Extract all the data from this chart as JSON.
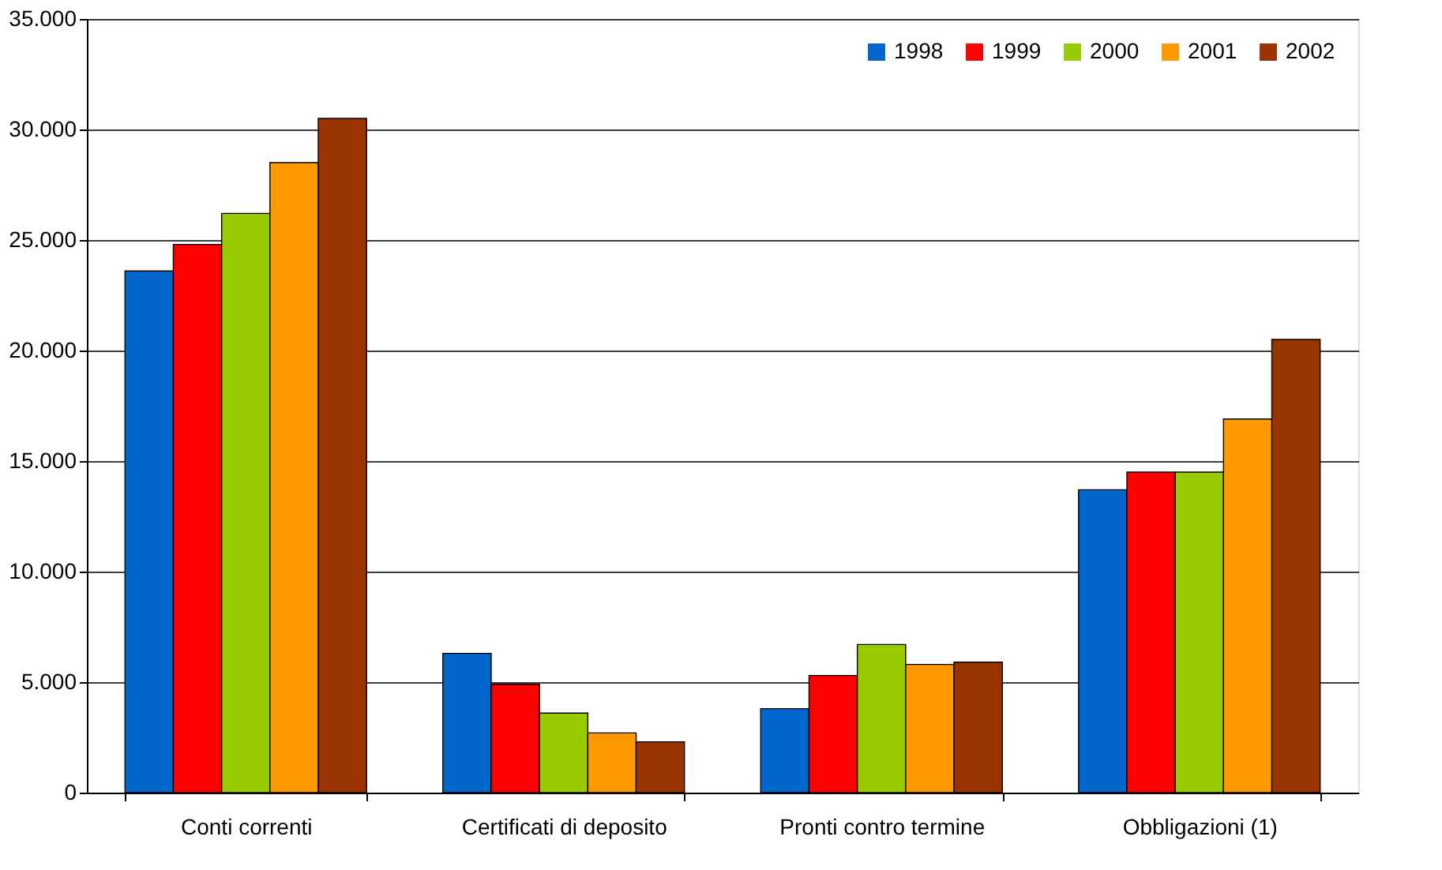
{
  "chart_data": {
    "type": "bar",
    "categories": [
      "Conti correnti",
      "Certificati di deposito",
      "Pronti contro termine",
      "Obbligazioni (1)"
    ],
    "series": [
      {
        "name": "1998",
        "color": "#0066cc",
        "values": [
          23600,
          6300,
          3800,
          13700
        ]
      },
      {
        "name": "1999",
        "color": "#ff0000",
        "values": [
          24800,
          4900,
          5300,
          14500
        ]
      },
      {
        "name": "2000",
        "color": "#99cc00",
        "values": [
          26200,
          3600,
          6700,
          14500
        ]
      },
      {
        "name": "2001",
        "color": "#ff9900",
        "values": [
          28500,
          2700,
          5800,
          16900
        ]
      },
      {
        "name": "2002",
        "color": "#993300",
        "values": [
          30500,
          2300,
          5900,
          20500
        ]
      }
    ],
    "ylim": [
      0,
      35000
    ],
    "yticks": [
      0,
      {
        "value": 5000,
        "label": "5.000"
      },
      {
        "value": 10000,
        "label": "10.000"
      },
      {
        "value": 15000,
        "label": "15.000"
      },
      {
        "value": 20000,
        "label": "20.000"
      },
      {
        "value": 25000,
        "label": "25.000"
      },
      {
        "value": 30000,
        "label": "30.000"
      },
      {
        "value": 35000,
        "label": "35.000"
      }
    ],
    "grid": "y",
    "legend": "top right"
  }
}
